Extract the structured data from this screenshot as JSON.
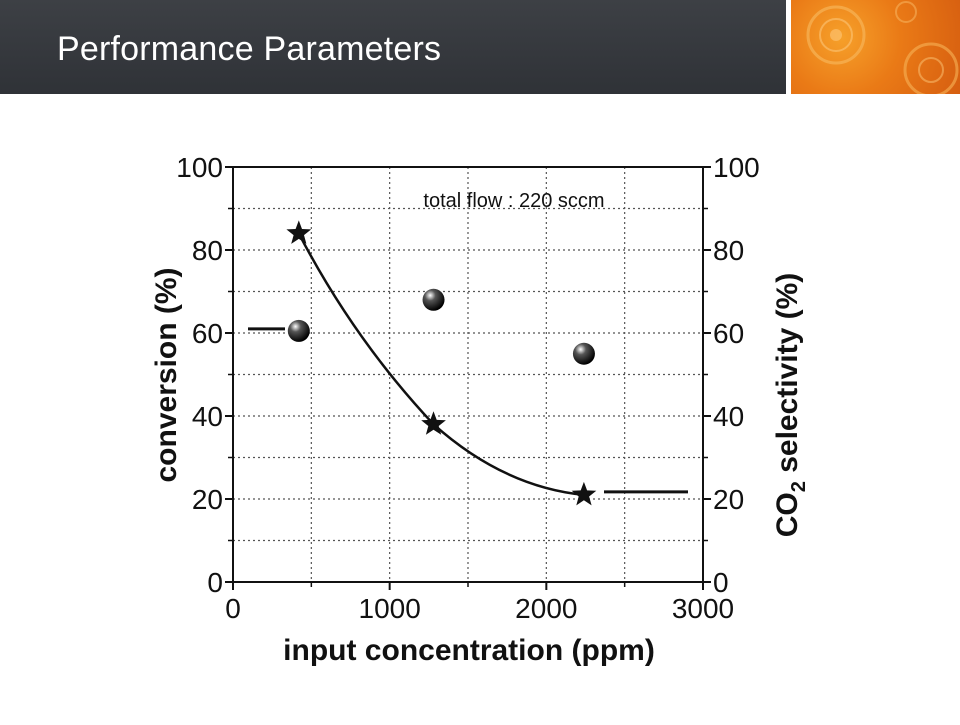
{
  "slide": {
    "title": "Performance Parameters"
  },
  "colors": {
    "header_bg": "#33363b",
    "accent": "#ea7a16",
    "title_text": "#ffffff"
  },
  "chart_data": {
    "type": "scatter",
    "xlabel": "input concentration (ppm)",
    "ylabel_left": "conversion (%)",
    "ylabel_right": "CO2 selectivity (%)",
    "annotation": "total flow : 220 sccm",
    "xlim": [
      0,
      3000
    ],
    "ylim_left": [
      0,
      100
    ],
    "ylim_right": [
      0,
      100
    ],
    "x_ticks": [
      0,
      1000,
      2000,
      3000
    ],
    "y_ticks": [
      0,
      20,
      40,
      60,
      80,
      100
    ],
    "grid": true,
    "series": [
      {
        "marker": "sphere",
        "axis": "left",
        "x": [
          420,
          1280,
          2240
        ],
        "y": [
          60.5,
          68,
          55
        ],
        "arrow_toward": "left"
      },
      {
        "marker": "star",
        "axis": "right",
        "x": [
          420,
          1280,
          2240
        ],
        "y": [
          84,
          38,
          21
        ],
        "fit_curve": true,
        "arrow_toward": "right"
      }
    ]
  }
}
